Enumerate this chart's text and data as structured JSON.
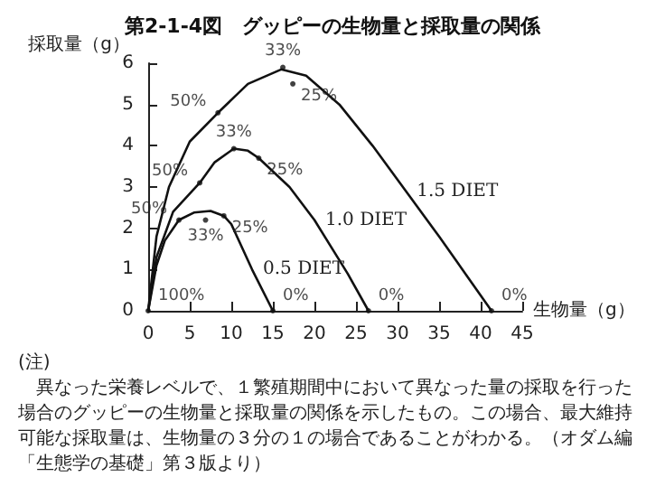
{
  "chart_data": {
    "type": "line",
    "title": "第2-1-4図　グッピーの生物量と採取量の関係",
    "xlabel": "生物量（g）",
    "ylabel": "採取量（g）",
    "xlim": [
      0,
      45
    ],
    "xticks": [
      0,
      5,
      10,
      15,
      20,
      25,
      30,
      35,
      40,
      45
    ],
    "ylim": [
      0,
      6
    ],
    "yticks": [
      0,
      1,
      2,
      3,
      4,
      5,
      6
    ],
    "grid": false,
    "legend": false,
    "marker": "none",
    "line_style": "solid",
    "series": [
      {
        "name": "0.5 DIET",
        "color": "#111111",
        "x": [
          0,
          1,
          2,
          3.7,
          5.5,
          7.5,
          9.1,
          10,
          12.5,
          15
        ],
        "values": [
          0,
          1.1,
          1.7,
          2.2,
          2.38,
          2.42,
          2.3,
          2.1,
          1.0,
          0
        ]
      },
      {
        "name": "1.0 DIET",
        "color": "#111111",
        "x": [
          0,
          1,
          3,
          6.2,
          8,
          10.3,
          12,
          13.3,
          17,
          20,
          24,
          26.5
        ],
        "values": [
          0,
          1.3,
          2.4,
          3.1,
          3.6,
          3.93,
          3.88,
          3.7,
          3.0,
          2.2,
          0.9,
          0
        ]
      },
      {
        "name": "1.5 DIET",
        "color": "#111111",
        "x": [
          0,
          1,
          2.5,
          5,
          8.4,
          12,
          16,
          19,
          23,
          27,
          31,
          35,
          38.5,
          41.3
        ],
        "values": [
          0,
          1.8,
          3.0,
          4.1,
          4.8,
          5.5,
          5.85,
          5.7,
          5.0,
          4.0,
          2.9,
          1.8,
          0.8,
          0
        ]
      }
    ],
    "annotations": [
      {
        "text": "100%",
        "x": 0,
        "y": 0
      },
      {
        "text": "50%",
        "x": 3.7,
        "y": 2.2
      },
      {
        "text": "33%",
        "x": 6.9,
        "y": 2.2
      },
      {
        "text": "25%",
        "x": 9.1,
        "y": 2.3
      },
      {
        "text": "0%",
        "x": 15,
        "y": 0
      },
      {
        "text": "50%",
        "x": 6.2,
        "y": 3.1
      },
      {
        "text": "33%",
        "x": 10.3,
        "y": 3.93
      },
      {
        "text": "25%",
        "x": 13.3,
        "y": 3.7
      },
      {
        "text": "0%",
        "x": 26.5,
        "y": 0
      },
      {
        "text": "50%",
        "x": 8.4,
        "y": 4.8
      },
      {
        "text": "33%",
        "x": 16.2,
        "y": 5.9
      },
      {
        "text": "25%",
        "x": 17.4,
        "y": 5.5
      },
      {
        "text": "0%",
        "x": 41.3,
        "y": 0
      },
      "(注)",
      "　異なった栄養レベルで、１繁殖期間中において異なった量の採取を行った場合のグッピーの生物量と採取量の関係を示したもの。この場合、最大維持可能な採取量は、生物量の３分の１の場合であることがわかる。（オダム編「生態学の基礎」第３版より）"
    ]
  }
}
